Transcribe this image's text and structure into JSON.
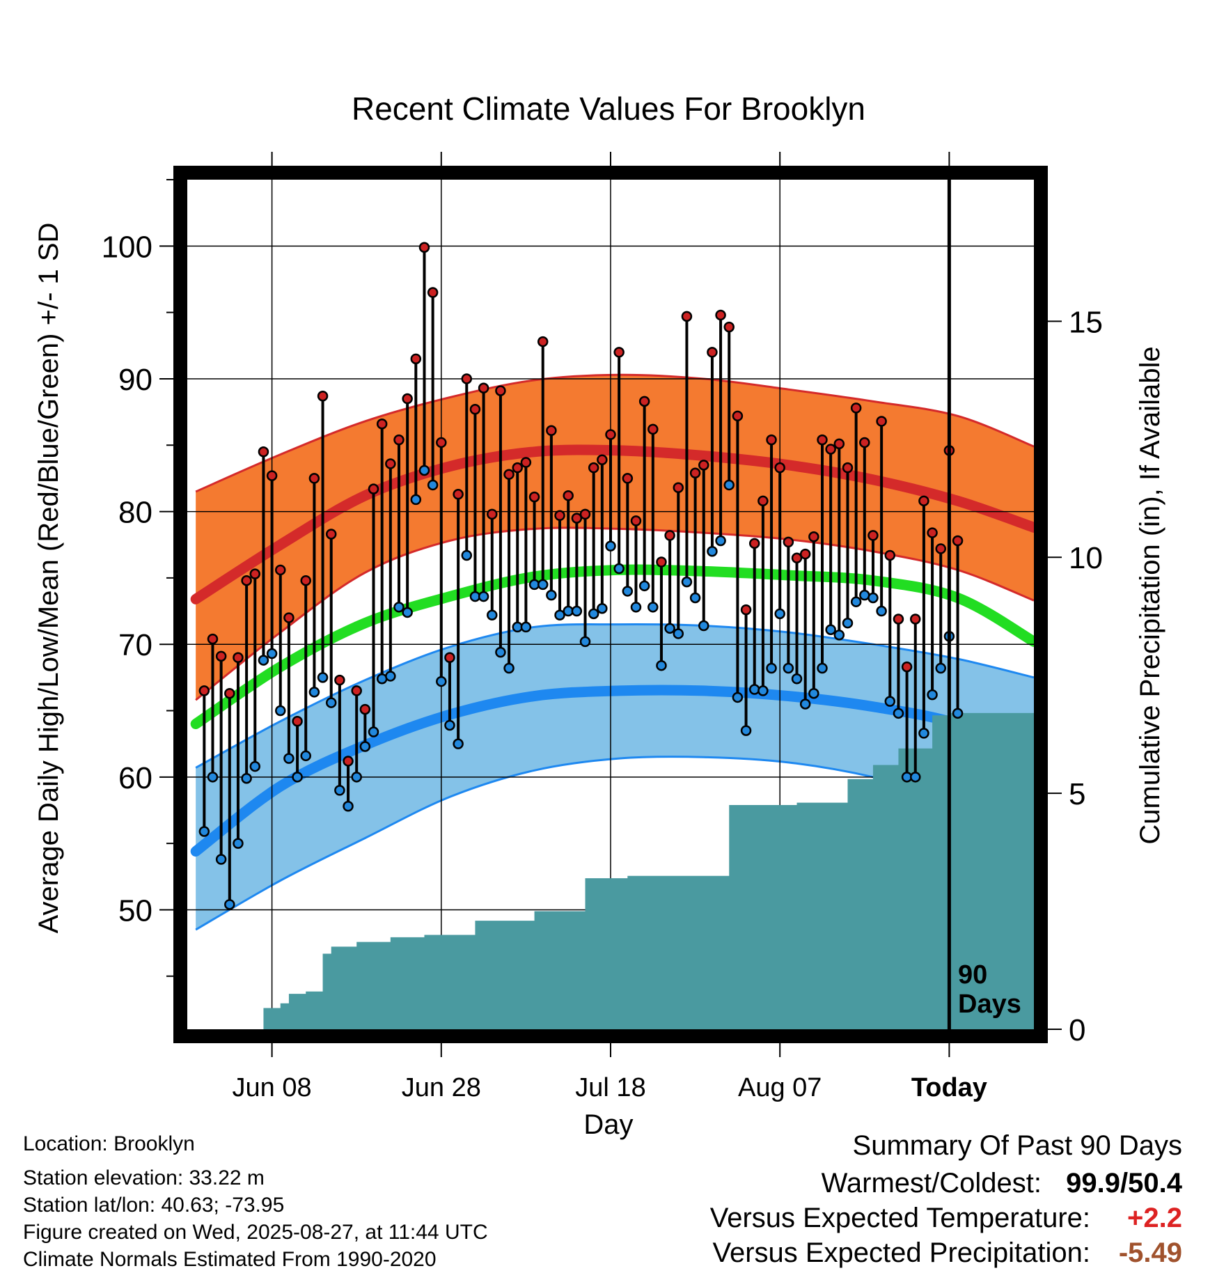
{
  "chart_data": {
    "type": "line",
    "title": "Recent Climate Values For Brooklyn",
    "xlabel": "Day",
    "ylabel": "Average Daily High/Low/Mean (Red/Blue/Green) +/- 1 SD",
    "ylabel_right": "Cumulative Precipitation (in), If Available",
    "x_ticks": [
      "Jun 08",
      "Jun 28",
      "Jul 18",
      "Aug 07",
      "Today"
    ],
    "x_tick_days": [
      8,
      28,
      48,
      68,
      88
    ],
    "xlim": [
      -2,
      98
    ],
    "ylim": [
      41,
      105
    ],
    "y_ticks": [
      50,
      60,
      70,
      80,
      90,
      100
    ],
    "y_minor_ticks": [
      45,
      55,
      65,
      75,
      85,
      95,
      105
    ],
    "ylim_right": [
      0,
      18
    ],
    "y_ticks_right": [
      0,
      5,
      10,
      15
    ],
    "today_day": 88,
    "window_label_line1": "90",
    "window_label_line2": "Days",
    "normals": {
      "days": [
        -1,
        9,
        19,
        29,
        39,
        49,
        59,
        69,
        79,
        89,
        99
      ],
      "high_mean": [
        73.4,
        77.5,
        81.2,
        83.4,
        84.5,
        84.6,
        84.2,
        83.5,
        82.4,
        80.8,
        78.8
      ],
      "high_upper": [
        81.5,
        84.3,
        86.8,
        88.6,
        89.9,
        90.3,
        90.0,
        89.2,
        88.3,
        87.2,
        84.9
      ],
      "high_lower": [
        65.8,
        70.9,
        75.4,
        77.8,
        78.7,
        78.7,
        78.4,
        77.9,
        77.0,
        75.6,
        73.3
      ],
      "mean": [
        64.0,
        68.3,
        71.6,
        73.6,
        75.1,
        75.6,
        75.5,
        75.2,
        74.8,
        73.5,
        70.2
      ],
      "low_mean": [
        54.4,
        59.3,
        62.4,
        64.7,
        66.1,
        66.5,
        66.5,
        66.1,
        65.3,
        64.0,
        61.5
      ],
      "low_upper": [
        60.7,
        64.2,
        67.3,
        69.8,
        71.3,
        71.5,
        71.4,
        70.9,
        70.0,
        68.9,
        67.5
      ],
      "low_lower": [
        48.5,
        52.2,
        55.4,
        58.5,
        60.5,
        61.4,
        61.5,
        61.1,
        60.0,
        58.2,
        55.6
      ]
    },
    "series": [
      {
        "name": "High",
        "color": "#cc2222",
        "values": [
          66.5,
          70.4,
          69.1,
          66.3,
          69.0,
          74.8,
          75.3,
          84.5,
          82.7,
          75.6,
          72.0,
          64.2,
          74.8,
          82.5,
          88.7,
          78.3,
          67.3,
          61.2,
          66.5,
          65.1,
          81.7,
          86.6,
          83.6,
          85.4,
          88.5,
          91.5,
          99.9,
          96.5,
          85.2,
          69.0,
          81.3,
          90.0,
          87.7,
          89.3,
          79.8,
          89.1,
          82.8,
          83.3,
          83.7,
          81.1,
          92.8,
          86.1,
          79.7,
          81.2,
          79.5,
          79.8,
          83.3,
          83.9,
          85.8,
          92.0,
          82.5,
          79.3,
          88.3,
          86.2,
          76.2,
          78.2,
          81.8,
          94.7,
          82.9,
          83.5,
          92.0,
          94.8,
          93.9,
          87.2,
          72.6,
          77.6,
          80.8,
          85.4,
          83.3,
          77.7,
          76.5,
          76.8,
          78.1,
          85.4,
          84.7,
          85.1,
          83.3,
          87.8,
          85.2,
          78.2,
          86.8,
          76.7,
          71.9,
          68.3,
          71.9,
          80.8,
          78.4,
          77.2,
          84.6,
          77.8
        ]
      },
      {
        "name": "Low",
        "color": "#2288dd",
        "values": [
          55.9,
          60.0,
          53.8,
          50.4,
          55.0,
          59.9,
          60.8,
          68.8,
          69.3,
          65.0,
          61.4,
          60.0,
          61.6,
          66.4,
          67.5,
          65.6,
          59.0,
          57.8,
          60.0,
          62.3,
          63.4,
          67.4,
          67.6,
          72.8,
          72.4,
          80.9,
          83.1,
          82.0,
          67.2,
          63.9,
          62.5,
          76.7,
          73.6,
          73.6,
          72.2,
          69.4,
          68.2,
          71.3,
          71.3,
          74.5,
          74.5,
          73.7,
          72.2,
          72.5,
          72.5,
          70.2,
          72.3,
          72.7,
          77.4,
          75.7,
          74.0,
          72.8,
          74.4,
          72.8,
          68.4,
          71.2,
          70.8,
          74.7,
          73.5,
          71.4,
          77.0,
          77.8,
          82.0,
          66.0,
          63.5,
          66.6,
          66.5,
          68.2,
          72.3,
          68.2,
          67.4,
          65.5,
          66.3,
          68.2,
          71.1,
          70.7,
          71.6,
          73.2,
          73.7,
          73.5,
          72.5,
          65.7,
          64.8,
          60.0,
          60.0,
          63.3,
          66.2,
          68.2,
          70.6,
          64.8
        ]
      },
      {
        "name": "Cumulative Precipitation",
        "color": "#4a9aa0",
        "x": [
          -1,
          6,
          7,
          9,
          10,
          12,
          14,
          15,
          18,
          22,
          26,
          32,
          39,
          45,
          50,
          61,
          62,
          66,
          70,
          76,
          79,
          82,
          86,
          88,
          92,
          98
        ],
        "values": [
          0,
          0,
          0.45,
          0.55,
          0.75,
          0.8,
          1.6,
          1.75,
          1.85,
          1.95,
          2.0,
          2.3,
          2.5,
          3.2,
          3.25,
          3.25,
          4.75,
          4.75,
          4.8,
          5.3,
          5.6,
          5.95,
          6.65,
          6.7,
          6.7,
          6.7
        ]
      }
    ],
    "series_start_day": 0
  },
  "info": {
    "location": "Location: Brooklyn",
    "elevation": "Station elevation: 33.22 m",
    "latlon": "Station lat/lon: 40.63; -73.95",
    "created": "Figure created on Wed, 2025-08-27, at 11:44 UTC",
    "normals_period": "Climate Normals Estimated From 1990-2020"
  },
  "summary": {
    "heading": "Summary Of Past 90 Days",
    "warmest_coldest_label": "Warmest/Coldest:",
    "warmest_coldest_value": "99.9/50.4",
    "temp_label": "Versus Expected Temperature:",
    "temp_value": "+2.2",
    "temp_color": "#dd2222",
    "precip_label": "Versus Expected Precipitation:",
    "precip_value": "-5.49",
    "precip_color": "#a0522d"
  },
  "colors": {
    "high_band": "#f47a30",
    "high_line": "#d42a2a",
    "mean_line": "#22dd22",
    "low_band": "#84c2e8",
    "low_line": "#1e88f0",
    "precip_fill": "#4a9aa0"
  }
}
